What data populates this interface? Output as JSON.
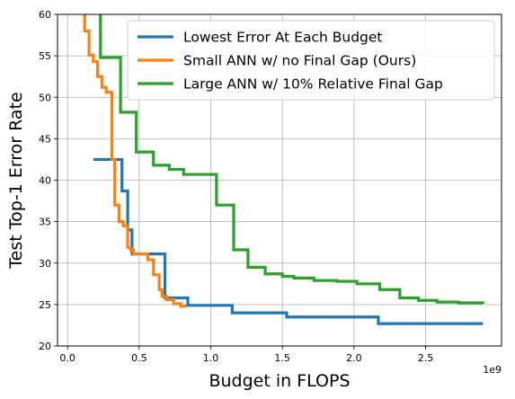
{
  "chart_data": {
    "type": "line",
    "title": "",
    "xlabel": "Budget in FLOPS",
    "ylabel": "Test Top-1 Error Rate",
    "x_offset_label": "1e9",
    "xlim": [
      -0.07,
      3.03
    ],
    "ylim": [
      20,
      60
    ],
    "xticks": [
      0.0,
      0.5,
      1.0,
      1.5,
      2.0,
      2.5
    ],
    "xtick_labels": [
      "0.0",
      "0.5",
      "1.0",
      "1.5",
      "2.0",
      "2.5"
    ],
    "yticks": [
      20,
      25,
      30,
      35,
      40,
      45,
      50,
      55,
      60
    ],
    "ytick_labels": [
      "20",
      "25",
      "30",
      "35",
      "40",
      "45",
      "50",
      "55",
      "60"
    ],
    "grid": true,
    "legend_position": "top-right",
    "step": true,
    "series": [
      {
        "name": "Lowest Error At Each Budget",
        "color": "#1f77b4",
        "x": [
          0.18,
          0.38,
          0.42,
          0.45,
          0.65,
          0.68,
          0.84,
          0.84,
          1.15,
          1.53,
          2.17,
          2.9
        ],
        "y": [
          42.5,
          38.7,
          34.0,
          31.1,
          31.1,
          25.8,
          24.9,
          24.9,
          24.0,
          23.5,
          22.7,
          22.7
        ]
      },
      {
        "name": "Small ANN w/ no Final Gap (Ours)",
        "color": "#ff7f0e",
        "x": [
          0.12,
          0.12,
          0.15,
          0.18,
          0.21,
          0.24,
          0.27,
          0.31,
          0.33,
          0.36,
          0.39,
          0.42,
          0.44,
          0.46,
          0.52,
          0.56,
          0.6,
          0.64,
          0.66,
          0.69,
          0.74,
          0.79,
          0.83
        ],
        "y": [
          60.5,
          58.0,
          55.1,
          54.3,
          52.5,
          51.2,
          50.6,
          42.5,
          37.0,
          35.0,
          34.5,
          31.9,
          31.6,
          31.1,
          31.1,
          30.4,
          28.6,
          26.8,
          26.0,
          25.6,
          25.1,
          24.8,
          24.8
        ]
      },
      {
        "name": "Large ANN w/ 10% Relative Final Gap",
        "color": "#2ca02c",
        "x": [
          0.23,
          0.23,
          0.37,
          0.48,
          0.6,
          0.71,
          0.81,
          1.04,
          1.16,
          1.26,
          1.38,
          1.5,
          1.58,
          1.72,
          1.88,
          2.02,
          2.18,
          2.32,
          2.45,
          2.58,
          2.73,
          2.9
        ],
        "y": [
          60.5,
          54.8,
          48.2,
          43.4,
          41.8,
          41.3,
          40.7,
          37.0,
          31.6,
          29.5,
          28.7,
          28.4,
          28.2,
          27.9,
          27.8,
          27.5,
          26.8,
          25.8,
          25.5,
          25.3,
          25.2,
          25.1
        ]
      }
    ]
  }
}
